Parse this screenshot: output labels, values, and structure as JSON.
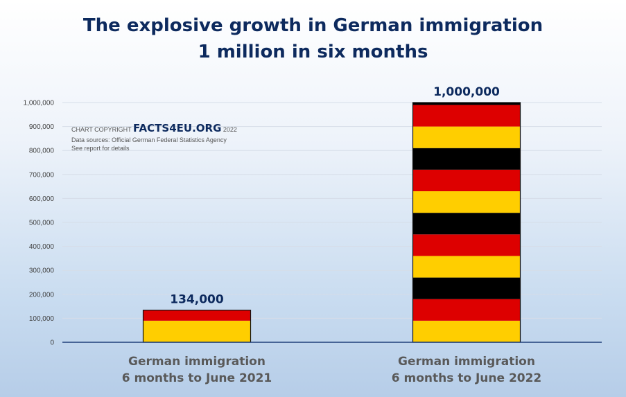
{
  "title": "The explosive growth in German immigration",
  "subtitle": "1 million in six months",
  "credit": {
    "prefix": "CHART COPYRIGHT",
    "brand": "FACTS4EU.ORG",
    "year": "2022",
    "sources": "Data sources: Official German Federal Statistics Agency",
    "note": "See report for details"
  },
  "colors": {
    "black": "#000000",
    "red": "#dd0000",
    "gold": "#ffce00",
    "title": "#0d2a5e",
    "category_text": "#595959"
  },
  "chart_data": {
    "type": "bar",
    "categories": [
      [
        "German immigration",
        "6 months to June 2021"
      ],
      [
        "German immigration",
        "6 months to June 2022"
      ]
    ],
    "values": [
      134000,
      1000000
    ],
    "data_labels": [
      "134,000",
      "1,000,000"
    ],
    "yticks": [
      0,
      100000,
      200000,
      300000,
      400000,
      500000,
      600000,
      700000,
      800000,
      900000,
      1000000
    ],
    "ytick_labels": [
      "0",
      "100,000",
      "200,000",
      "300,000",
      "400,000",
      "500,000",
      "600,000",
      "700,000",
      "800,000",
      "900,000",
      "1,000,000"
    ],
    "ylim": [
      0,
      1000000
    ],
    "grid": true,
    "bar_fill": "German flag stripes (gold, red, black)"
  }
}
